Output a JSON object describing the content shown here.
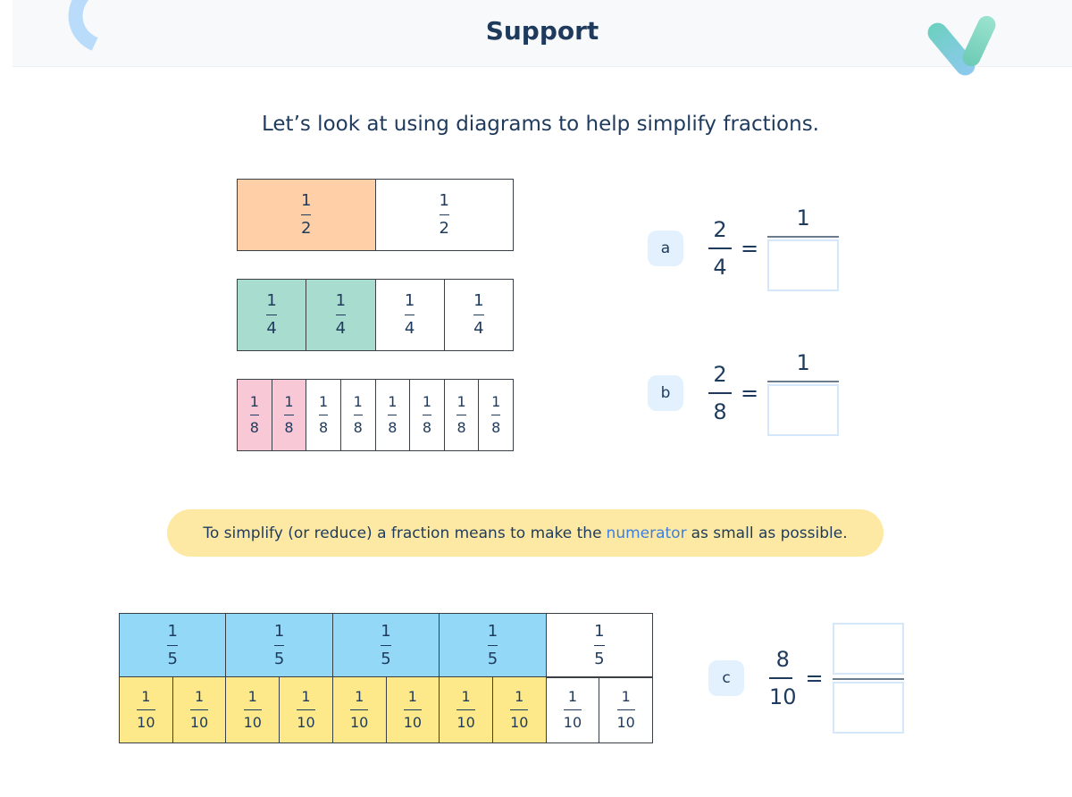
{
  "header": {
    "title": "Support"
  },
  "intro": "Let’s look at using diagrams to help simplify fractions.",
  "colors": {
    "halves": "#ffd0a8",
    "quarters": "#a8dccf",
    "eighths": "#f8c8d6",
    "fifths": "#93d9f7",
    "tenths": "#fde98a"
  },
  "bars": [
    {
      "denominator": "2",
      "count": 2,
      "shaded": 1
    },
    {
      "denominator": "4",
      "count": 4,
      "shaded": 2
    },
    {
      "denominator": "8",
      "count": 8,
      "shaded": 2
    },
    {
      "denominator": "5",
      "count": 5,
      "shaded": 4
    },
    {
      "denominator": "10",
      "count": 10,
      "shaded": 8
    }
  ],
  "numerator": "1",
  "questions": [
    {
      "label": "a",
      "num": "2",
      "den": "4",
      "answer_num": "1"
    },
    {
      "label": "b",
      "num": "2",
      "den": "8",
      "answer_num": "1"
    },
    {
      "label": "c",
      "num": "8",
      "den": "10"
    }
  ],
  "equals": "=",
  "tip": {
    "before": "To simplify (or reduce) a fraction means to make the",
    "highlight": "numerator",
    "after": "as small as possible."
  }
}
